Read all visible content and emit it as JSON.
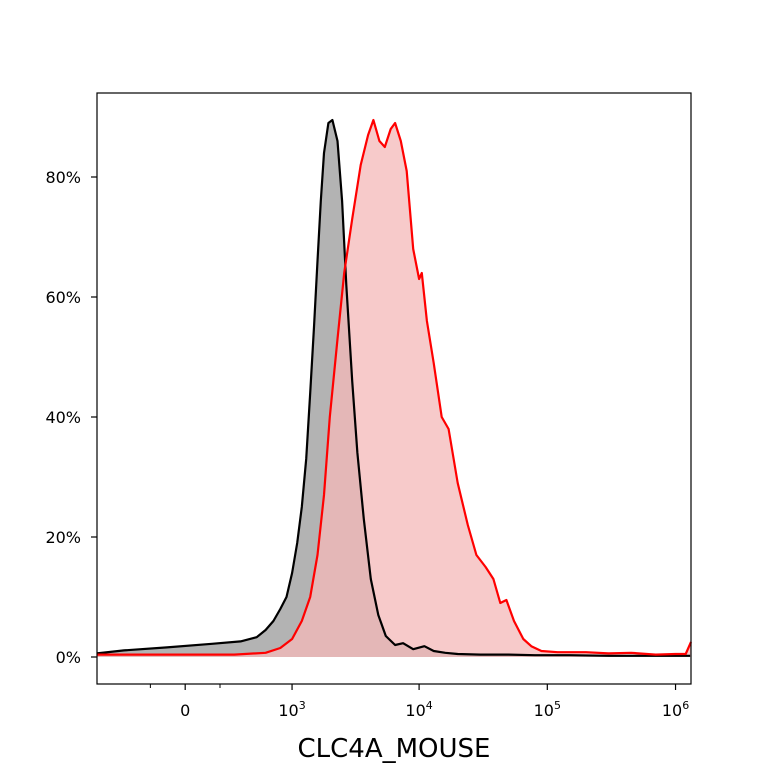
{
  "chart_data": {
    "type": "area",
    "title": "",
    "xlabel": "CLC4A_MOUSE",
    "ylabel": "",
    "x_scale": "biexponential",
    "ylim": [
      -0.045,
      0.94
    ],
    "y_ticks": [
      0,
      0.2,
      0.4,
      0.6,
      0.8
    ],
    "y_tick_labels": [
      "0%",
      "20%",
      "40%",
      "60%",
      "80%"
    ],
    "x_ticks": [
      {
        "value": 0,
        "label": "0"
      },
      {
        "value": 1000,
        "base": "10",
        "exp": "3"
      },
      {
        "value": 10000,
        "base": "10",
        "exp": "4"
      },
      {
        "value": 100000,
        "base": "10",
        "exp": "5"
      },
      {
        "value": 1000000,
        "base": "10",
        "exp": "6"
      }
    ],
    "x_minor_ticks": [
      -200,
      200
    ],
    "grid": false,
    "legend": "none",
    "series": [
      {
        "color": "#000000",
        "fill": "#b3b3b3",
        "points": [
          [
            -700,
            0.006
          ],
          [
            -400,
            0.011
          ],
          [
            -100,
            0.016
          ],
          [
            150,
            0.022
          ],
          [
            350,
            0.026
          ],
          [
            500,
            0.033
          ],
          [
            600,
            0.045
          ],
          [
            700,
            0.06
          ],
          [
            800,
            0.08
          ],
          [
            900,
            0.1
          ],
          [
            1000,
            0.14
          ],
          [
            1100,
            0.19
          ],
          [
            1200,
            0.25
          ],
          [
            1300,
            0.33
          ],
          [
            1400,
            0.44
          ],
          [
            1500,
            0.55
          ],
          [
            1600,
            0.66
          ],
          [
            1700,
            0.76
          ],
          [
            1800,
            0.84
          ],
          [
            1950,
            0.89
          ],
          [
            2100,
            0.895
          ],
          [
            2300,
            0.86
          ],
          [
            2500,
            0.76
          ],
          [
            2700,
            0.62
          ],
          [
            3000,
            0.46
          ],
          [
            3300,
            0.34
          ],
          [
            3700,
            0.23
          ],
          [
            4200,
            0.13
          ],
          [
            4800,
            0.07
          ],
          [
            5500,
            0.035
          ],
          [
            6500,
            0.02
          ],
          [
            7500,
            0.023
          ],
          [
            9000,
            0.013
          ],
          [
            11000,
            0.018
          ],
          [
            13000,
            0.01
          ],
          [
            16000,
            0.007
          ],
          [
            20000,
            0.005
          ],
          [
            30000,
            0.004
          ],
          [
            50000,
            0.004
          ],
          [
            80000,
            0.003
          ],
          [
            150000,
            0.003
          ],
          [
            300000,
            0.002
          ],
          [
            600000,
            0.002
          ],
          [
            1300000,
            0.002
          ]
        ]
      },
      {
        "color": "#ff0000",
        "fill": "#f4b8b8",
        "points": [
          [
            -700,
            0.004
          ],
          [
            -200,
            0.004
          ],
          [
            300,
            0.004
          ],
          [
            600,
            0.007
          ],
          [
            800,
            0.015
          ],
          [
            1000,
            0.03
          ],
          [
            1200,
            0.06
          ],
          [
            1400,
            0.1
          ],
          [
            1600,
            0.17
          ],
          [
            1800,
            0.27
          ],
          [
            2000,
            0.4
          ],
          [
            2300,
            0.53
          ],
          [
            2600,
            0.64
          ],
          [
            3000,
            0.73
          ],
          [
            3500,
            0.82
          ],
          [
            4000,
            0.87
          ],
          [
            4400,
            0.895
          ],
          [
            4900,
            0.86
          ],
          [
            5400,
            0.85
          ],
          [
            6000,
            0.88
          ],
          [
            6500,
            0.89
          ],
          [
            7200,
            0.86
          ],
          [
            8000,
            0.81
          ],
          [
            9000,
            0.68
          ],
          [
            10000,
            0.63
          ],
          [
            10500,
            0.64
          ],
          [
            11500,
            0.56
          ],
          [
            13000,
            0.49
          ],
          [
            15000,
            0.4
          ],
          [
            17000,
            0.38
          ],
          [
            20000,
            0.29
          ],
          [
            24000,
            0.22
          ],
          [
            28000,
            0.17
          ],
          [
            33000,
            0.15
          ],
          [
            38000,
            0.13
          ],
          [
            43000,
            0.09
          ],
          [
            48000,
            0.095
          ],
          [
            55000,
            0.06
          ],
          [
            65000,
            0.03
          ],
          [
            75000,
            0.018
          ],
          [
            90000,
            0.01
          ],
          [
            120000,
            0.008
          ],
          [
            200000,
            0.008
          ],
          [
            300000,
            0.006
          ],
          [
            450000,
            0.007
          ],
          [
            700000,
            0.004
          ],
          [
            1000000,
            0.005
          ],
          [
            1200000,
            0.005
          ],
          [
            1320000,
            0.025
          ]
        ]
      }
    ]
  }
}
